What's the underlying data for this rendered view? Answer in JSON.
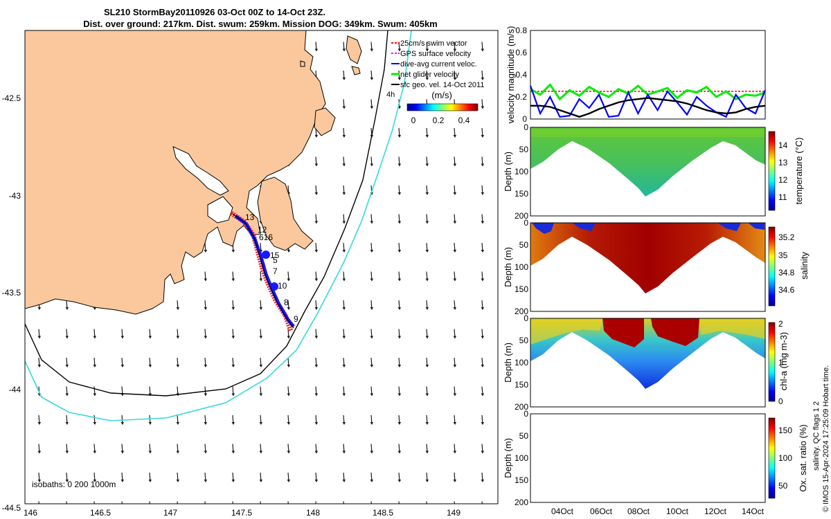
{
  "title": {
    "line1": "SL210 StormBay20110926 03-Oct 00Z to 14-Oct 23Z.",
    "line2": "Dist. over ground: 217km. Dist. swum: 259km. Mission DOG: 349km. Swum: 405km"
  },
  "map": {
    "lon_ticks": [
      "146",
      "146.5",
      "147",
      "147.5",
      "148",
      "148.5",
      "149"
    ],
    "lat_ticks": [
      "-42.5",
      "-43",
      "-43.5",
      "-44",
      "-44.5"
    ],
    "isobath_label": "isobaths: 0   200  1000m",
    "track_labels": [
      "13",
      "12",
      "616",
      "15",
      "5",
      "7",
      "10",
      "8",
      "9"
    ],
    "legend": [
      {
        "label": "25cm/s swim vector",
        "color": "#ff0000"
      },
      {
        "label": "GPS surface velocity",
        "color": "#ff00ff"
      },
      {
        "label": "dive-avg current veloc.",
        "color": "#0000ff"
      },
      {
        "label": "net glider velocity",
        "color": "#00ee00"
      },
      {
        "label": "sfc geo. vel. 14-Oct 2011",
        "color": "#000000"
      }
    ],
    "legend_extra": "4h",
    "colorbar": {
      "unit": "(m/s)",
      "ticks": [
        "0",
        "0.2",
        "0.4"
      ]
    },
    "land_color": "#fac89c",
    "iso200_color": "#000000",
    "iso1000_color": "#33d9dc"
  },
  "chart_data": [
    {
      "type": "line",
      "title": "",
      "ylabel": "velocity magnitude (m/s)",
      "ylim": [
        0,
        0.8
      ],
      "yticks": [
        "0",
        "0.2",
        "0.4",
        "0.6",
        "0.8"
      ],
      "x": [
        0,
        0.5,
        1,
        1.5,
        2,
        2.5,
        3,
        3.5,
        4,
        4.5,
        5,
        5.5,
        6,
        6.5,
        7,
        7.5,
        8,
        8.5,
        9,
        9.5,
        10,
        10.5,
        11,
        11.5,
        12
      ],
      "series": [
        {
          "name": "swim",
          "color": "#ff0000",
          "values": [
            0.25,
            0.25,
            0.25,
            0.25,
            0.25,
            0.25,
            0.25,
            0.25,
            0.25,
            0.25,
            0.25,
            0.25,
            0.25,
            0.25,
            0.25,
            0.25,
            0.25,
            0.25,
            0.25,
            0.25,
            0.25,
            0.25,
            0.25,
            0.25,
            0.25
          ]
        },
        {
          "name": "net glider",
          "color": "#00ee00",
          "values": [
            0.27,
            0.22,
            0.31,
            0.18,
            0.26,
            0.21,
            0.29,
            0.24,
            0.2,
            0.27,
            0.23,
            0.3,
            0.22,
            0.25,
            0.28,
            0.19,
            0.26,
            0.24,
            0.29,
            0.2,
            0.25,
            0.18,
            0.22,
            0.21,
            0.24
          ]
        },
        {
          "name": "dive-avg current",
          "color": "#0000ff",
          "values": [
            0.3,
            0.05,
            0.2,
            0.02,
            0.03,
            0.18,
            0.1,
            0.22,
            0.02,
            0.03,
            0.24,
            0.05,
            0.22,
            0.08,
            0.25,
            0.15,
            0.04,
            0.2,
            0.12,
            0.06,
            0.02,
            0.22,
            0.1,
            0.05,
            0.26
          ]
        },
        {
          "name": "sfc geo",
          "color": "#000000",
          "values": [
            0.12,
            0.12,
            0.11,
            0.08,
            0.05,
            0.02,
            0.05,
            0.09,
            0.12,
            0.15,
            0.17,
            0.18,
            0.19,
            0.18,
            0.17,
            0.16,
            0.14,
            0.11,
            0.08,
            0.06,
            0.05,
            0.06,
            0.09,
            0.11,
            0.12
          ]
        }
      ]
    },
    {
      "type": "heatmap",
      "ylabel": "Depth (m)",
      "clabel": "temperature (°C)",
      "cticks": [
        "11",
        "12",
        "13",
        "14"
      ],
      "ylim": [
        200,
        0
      ],
      "yticks": [
        "0",
        "50",
        "100",
        "150",
        "200"
      ]
    },
    {
      "type": "heatmap",
      "ylabel": "Depth (m)",
      "clabel": "salinity",
      "cticks": [
        "34.6",
        "34.8",
        "35",
        "35.2"
      ],
      "ylim": [
        200,
        0
      ],
      "yticks": [
        "0",
        "50",
        "100",
        "150",
        "200"
      ]
    },
    {
      "type": "heatmap",
      "ylabel": "Depth (m)",
      "clabel": "chl-a (mg m-3)",
      "cticks": [
        "0",
        "1",
        "2"
      ],
      "ylim": [
        200,
        0
      ],
      "yticks": [
        "0",
        "50",
        "100",
        "150",
        "200"
      ]
    },
    {
      "type": "heatmap",
      "ylabel": "Depth (m)",
      "clabel": "Ox. sat. ratio (%)",
      "cticks": [
        "50",
        "100",
        "150"
      ],
      "ylim": [
        200,
        0
      ],
      "yticks": [
        "0",
        "50",
        "100",
        "150",
        "200"
      ],
      "xticks": [
        "04Oct",
        "06Oct",
        "08Oct",
        "10Oct",
        "12Oct",
        "14Oct"
      ]
    }
  ],
  "footer": {
    "qc": "salinity. QC flags 1  2",
    "credit": "© IMOS 15-Apr-2024 17:25:09 Hobart time."
  }
}
